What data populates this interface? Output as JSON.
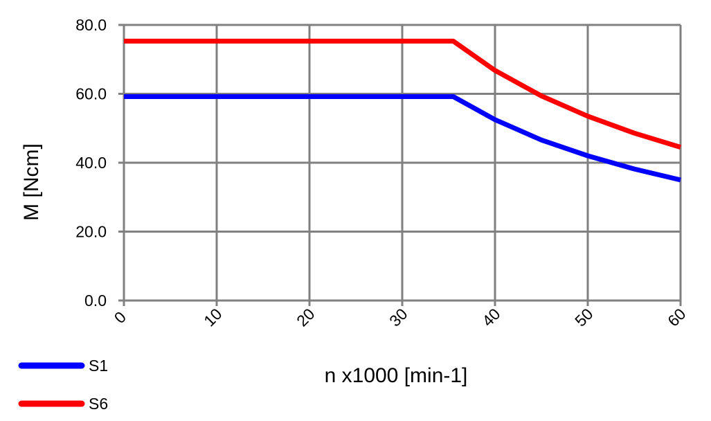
{
  "chart_data": {
    "type": "line",
    "title": "",
    "xlabel": "n x1000 [min-1]",
    "ylabel": "M [Ncm]",
    "xlim": [
      0,
      60
    ],
    "ylim": [
      0,
      80
    ],
    "x_ticks": [
      0,
      10,
      20,
      30,
      40,
      50,
      60
    ],
    "x_tick_labels": [
      "0",
      "10",
      "20",
      "30",
      "40",
      "50",
      "60"
    ],
    "y_ticks": [
      0,
      20,
      40,
      60,
      80
    ],
    "y_tick_labels": [
      "0.0",
      "20.0",
      "40.0",
      "60.0",
      "80.0"
    ],
    "grid": true,
    "legend_position": "bottom-left",
    "series": [
      {
        "name": "S1",
        "color": "#0000ff",
        "x": [
          0,
          35.5,
          40,
          45,
          50,
          55,
          60
        ],
        "y": [
          59.2,
          59.2,
          52.5,
          46.6,
          42.0,
          38.2,
          35.0
        ]
      },
      {
        "name": "S6",
        "color": "#ff0000",
        "x": [
          0,
          35.5,
          40,
          45,
          50,
          55,
          60
        ],
        "y": [
          75.3,
          75.3,
          66.8,
          59.4,
          53.5,
          48.6,
          44.5
        ]
      }
    ],
    "grid_color": "#808080"
  }
}
